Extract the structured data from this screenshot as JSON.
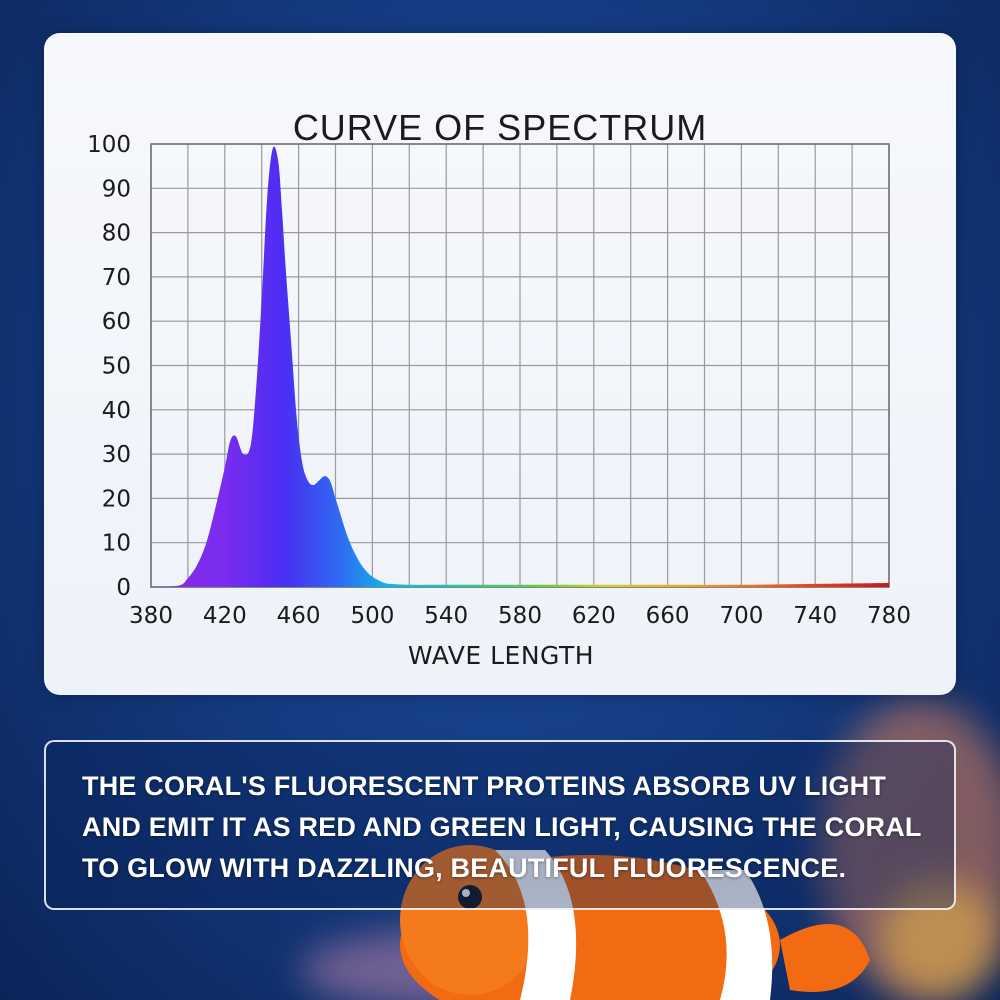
{
  "colors": {
    "background": "#153d85",
    "card": "#f4f6fb",
    "grid": "#9a9a9a",
    "info_text": "#ffffff"
  },
  "info": {
    "text": "THE CORAL'S FLUORESCENT PROTEINS ABSORB UV LIGHT AND EMIT IT AS RED AND GREEN LIGHT, CAUSING THE CORAL TO GLOW WITH DAZZLING, BEAUTIFUL FLUORESCENCE."
  },
  "chart_data": {
    "type": "area",
    "title": "CURVE OF SPECTRUM",
    "xlabel": "WAVE LENGTH",
    "ylabel": "",
    "x_ticks": [
      380,
      420,
      460,
      500,
      540,
      580,
      620,
      660,
      700,
      740,
      780
    ],
    "y_ticks": [
      0,
      10,
      20,
      30,
      40,
      50,
      60,
      70,
      80,
      90,
      100
    ],
    "xlim": [
      380,
      780
    ],
    "ylim": [
      0,
      100
    ],
    "grid": true,
    "series": [
      {
        "x": [
          380,
          395,
          400,
          405,
          410,
          415,
          420,
          423,
          426,
          430,
          434,
          437,
          440,
          443,
          446,
          449,
          451,
          453,
          456,
          459,
          462,
          465,
          468,
          471,
          474,
          477,
          480,
          483,
          486,
          490,
          494,
          498,
          502,
          506,
          510,
          520,
          540,
          580,
          620,
          660,
          700,
          740,
          780
        ],
        "y": [
          0,
          0.3,
          2,
          5,
          10,
          18,
          27,
          33,
          34,
          30,
          32,
          45,
          65,
          88,
          99,
          96,
          85,
          72,
          55,
          38,
          28,
          24,
          23,
          24,
          25,
          24,
          20,
          16,
          12,
          8,
          5,
          3,
          1.8,
          1,
          0.7,
          0.5,
          0.5,
          0.5,
          0.5,
          0.5,
          0.5,
          0.7,
          0.9
        ]
      }
    ]
  }
}
